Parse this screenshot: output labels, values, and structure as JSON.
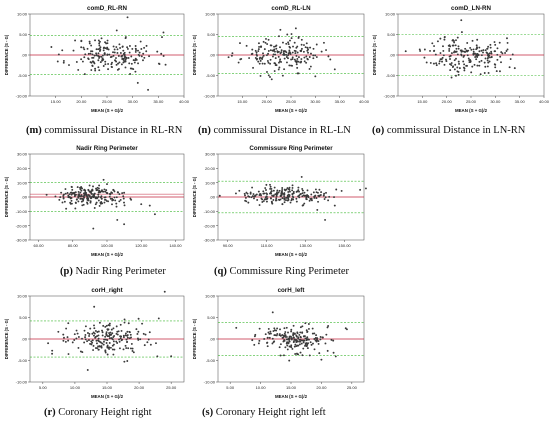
{
  "chart_data": [
    {
      "type": "scatter",
      "id": "m",
      "title": "comD_RL-RN",
      "xlabel": "MEAN (S + G)/2",
      "ylabel": "DIFFERENCE (S - G)",
      "xlim": [
        10,
        40
      ],
      "ylim": [
        -10,
        10
      ],
      "x_ticks": [
        {
          "v": 15,
          "t": "15.00"
        },
        {
          "v": 20,
          "t": "20.00"
        },
        {
          "v": 25,
          "t": "25.00"
        },
        {
          "v": 30,
          "t": "30.00"
        },
        {
          "v": 35,
          "t": "35.00"
        },
        {
          "v": 40,
          "t": "40.00"
        }
      ],
      "y_ticks": [
        {
          "v": 10,
          "t": "10.00"
        },
        {
          "v": 5,
          "t": "5.00"
        },
        {
          "v": 0,
          "t": ".00"
        },
        {
          "v": -5,
          "t": "-5.00"
        },
        {
          "v": -10,
          "t": "-10.00"
        }
      ],
      "mean_diff": 0.0,
      "loa_upper": 4.8,
      "loa_lower": -4.8,
      "cluster": {
        "x": 26,
        "sx": 4.2,
        "y": 0,
        "sy": 2.2,
        "n": 200,
        "seed": 11
      },
      "outliers": [
        [
          29,
          9.2
        ],
        [
          31,
          -6.8
        ],
        [
          36,
          5.5
        ],
        [
          33,
          -8.5
        ]
      ],
      "caption_letter": "(m)",
      "caption_text": " commissural Distance in RL-RN"
    },
    {
      "type": "scatter",
      "id": "n",
      "title": "comD_RL-LN",
      "xlabel": "MEAN (S + G)/2",
      "ylabel": "DIFFERENCE (S - G)",
      "xlim": [
        10,
        40
      ],
      "ylim": [
        -10,
        10
      ],
      "x_ticks": [
        {
          "v": 15,
          "t": "15.00"
        },
        {
          "v": 20,
          "t": "20.00"
        },
        {
          "v": 25,
          "t": "25.00"
        },
        {
          "v": 30,
          "t": "30.00"
        },
        {
          "v": 35,
          "t": "35.00"
        },
        {
          "v": 40,
          "t": "40.00"
        }
      ],
      "y_ticks": [
        {
          "v": 10,
          "t": "10.00"
        },
        {
          "v": 5,
          "t": "5.00"
        },
        {
          "v": 0,
          "t": ".00"
        },
        {
          "v": -5,
          "t": "-5.00"
        },
        {
          "v": -10,
          "t": "-10.00"
        }
      ],
      "mean_diff": 0.0,
      "loa_upper": 4.5,
      "loa_lower": -4.5,
      "cluster": {
        "x": 23,
        "sx": 4.0,
        "y": 0,
        "sy": 2.0,
        "n": 200,
        "seed": 23
      },
      "outliers": [
        [
          26,
          6.5
        ],
        [
          30,
          -5.2
        ],
        [
          34,
          -3.5
        ]
      ],
      "caption_letter": "(n)",
      "caption_text": " commissural Distance in RL-LN"
    },
    {
      "type": "scatter",
      "id": "o",
      "title": "comD_LN-RN",
      "xlabel": "MEAN (S + G)/2",
      "ylabel": "DIFFERENCE (S - G)",
      "xlim": [
        10,
        40
      ],
      "ylim": [
        -10,
        10
      ],
      "x_ticks": [
        {
          "v": 15,
          "t": "15.00"
        },
        {
          "v": 20,
          "t": "20.00"
        },
        {
          "v": 25,
          "t": "25.00"
        },
        {
          "v": 30,
          "t": "30.00"
        },
        {
          "v": 35,
          "t": "35.00"
        },
        {
          "v": 40,
          "t": "40.00"
        }
      ],
      "y_ticks": [
        {
          "v": 10,
          "t": "10.00"
        },
        {
          "v": 5,
          "t": "5.00"
        },
        {
          "v": 0,
          "t": ".00"
        },
        {
          "v": -5,
          "t": "-5.00"
        },
        {
          "v": -10,
          "t": "-10.00"
        }
      ],
      "mean_diff": 0.0,
      "loa_upper": 5.0,
      "loa_lower": -5.0,
      "cluster": {
        "x": 24,
        "sx": 4.0,
        "y": 0,
        "sy": 2.3,
        "n": 200,
        "seed": 37
      },
      "outliers": [
        [
          23,
          8.5
        ],
        [
          32,
          0.5
        ],
        [
          34,
          -3.2
        ]
      ],
      "caption_letter": "(o)",
      "caption_text": " commissural Distance in LN-RN"
    },
    {
      "type": "scatter",
      "id": "p",
      "title": "Nadir Ring Perimeter",
      "xlabel": "MEAN (S + G)/2",
      "ylabel": "DIFFERENCE (S - G)",
      "xlim": [
        55,
        145
      ],
      "ylim": [
        -30,
        30
      ],
      "x_ticks": [
        {
          "v": 60,
          "t": "60.00"
        },
        {
          "v": 80,
          "t": "80.00"
        },
        {
          "v": 100,
          "t": "100.00"
        },
        {
          "v": 120,
          "t": "120.00"
        },
        {
          "v": 140,
          "t": "140.00"
        }
      ],
      "y_ticks": [
        {
          "v": 30,
          "t": "30.00"
        },
        {
          "v": 20,
          "t": "20.00"
        },
        {
          "v": 10,
          "t": "10.00"
        },
        {
          "v": 0,
          "t": ".00"
        },
        {
          "v": -10,
          "t": "-10.00"
        },
        {
          "v": -20,
          "t": "-20.00"
        },
        {
          "v": -30,
          "t": "-30.00"
        }
      ],
      "mean_diff": 0.0,
      "loa_upper": 10.0,
      "loa_lower": -10.0,
      "mean_diff_2": 2.0,
      "cluster": {
        "x": 90,
        "sx": 10.0,
        "y": 0.5,
        "sy": 3.5,
        "n": 210,
        "seed": 51
      },
      "outliers": [
        [
          98,
          12
        ],
        [
          100,
          9
        ],
        [
          106,
          -16
        ],
        [
          92,
          -22
        ],
        [
          120,
          -5
        ],
        [
          125,
          -6
        ],
        [
          128,
          -12
        ],
        [
          110,
          -19
        ]
      ],
      "caption_letter": "(p)",
      "caption_text": " Nadir Ring Perimeter"
    },
    {
      "type": "scatter",
      "id": "q",
      "title": "Commissure Ring Perimeter",
      "xlabel": "MEAN (S + G)/2",
      "ylabel": "DIFFERENCE (S - G)",
      "xlim": [
        85,
        160
      ],
      "ylim": [
        -30,
        30
      ],
      "x_ticks": [
        {
          "v": 90,
          "t": "90.00"
        },
        {
          "v": 110,
          "t": "110.00"
        },
        {
          "v": 130,
          "t": "130.00"
        },
        {
          "v": 150,
          "t": "150.00"
        }
      ],
      "y_ticks": [
        {
          "v": 30,
          "t": "30.00"
        },
        {
          "v": 20,
          "t": "20.00"
        },
        {
          "v": 10,
          "t": "10.00"
        },
        {
          "v": 0,
          "t": ".00"
        },
        {
          "v": -10,
          "t": "-10.00"
        },
        {
          "v": -20,
          "t": "-20.00"
        },
        {
          "v": -30,
          "t": "-30.00"
        }
      ],
      "mean_diff": 0.0,
      "loa_upper": 11.0,
      "loa_lower": -11.0,
      "cluster": {
        "x": 118,
        "sx": 11.0,
        "y": 0.5,
        "sy": 3.0,
        "n": 210,
        "seed": 67
      },
      "outliers": [
        [
          158,
          5
        ],
        [
          161,
          6
        ],
        [
          136,
          -9
        ],
        [
          140,
          -16
        ],
        [
          128,
          14
        ],
        [
          145,
          -6
        ]
      ],
      "caption_letter": "(q)",
      "caption_text": " Commissure Ring Perimeter"
    },
    {
      "type": "scatter",
      "id": "r",
      "title": "corH_right",
      "xlabel": "MEAN (S + G)/2",
      "ylabel": "DIFFERENCE (S - G)",
      "xlim": [
        3,
        27
      ],
      "ylim": [
        -10,
        10
      ],
      "x_ticks": [
        {
          "v": 5,
          "t": "5.00"
        },
        {
          "v": 10,
          "t": "10.00"
        },
        {
          "v": 15,
          "t": "15.00"
        },
        {
          "v": 20,
          "t": "20.00"
        },
        {
          "v": 25,
          "t": "25.00"
        }
      ],
      "y_ticks": [
        {
          "v": 10,
          "t": "10.00"
        },
        {
          "v": 5,
          "t": "5.00"
        },
        {
          "v": 0,
          "t": ".00"
        },
        {
          "v": -5,
          "t": "-5.00"
        },
        {
          "v": -10,
          "t": "-10.00"
        }
      ],
      "mean_diff": 0.0,
      "loa_upper": 4.2,
      "loa_lower": -4.2,
      "cluster": {
        "x": 15,
        "sx": 3.3,
        "y": 0,
        "sy": 1.9,
        "n": 200,
        "seed": 83
      },
      "outliers": [
        [
          16,
          11.2
        ],
        [
          13,
          7.5
        ],
        [
          12,
          -7.2
        ],
        [
          24,
          11
        ],
        [
          25,
          -4
        ],
        [
          9,
          -3.5
        ]
      ],
      "caption_letter": "(r)",
      "caption_text": " Coronary Height right"
    },
    {
      "type": "scatter",
      "id": "s",
      "title": "corH_left",
      "xlabel": "MEAN (S + G)/2",
      "ylabel": "DIFFERENCE (S - G)",
      "xlim": [
        3,
        27
      ],
      "ylim": [
        -10,
        10
      ],
      "x_ticks": [
        {
          "v": 5,
          "t": "5.00"
        },
        {
          "v": 10,
          "t": "10.00"
        },
        {
          "v": 15,
          "t": "15.00"
        },
        {
          "v": 20,
          "t": "20.00"
        },
        {
          "v": 25,
          "t": "25.00"
        }
      ],
      "y_ticks": [
        {
          "v": 10,
          "t": "10.00"
        },
        {
          "v": 5,
          "t": "5.00"
        },
        {
          "v": 0,
          "t": ".00"
        },
        {
          "v": -5,
          "t": "-5.00"
        },
        {
          "v": -10,
          "t": "-10.00"
        }
      ],
      "mean_diff": 0.0,
      "loa_upper": 3.8,
      "loa_lower": -3.8,
      "cluster": {
        "x": 15,
        "sx": 3.0,
        "y": 0,
        "sy": 1.7,
        "n": 200,
        "seed": 97
      },
      "outliers": [
        [
          12,
          6.2
        ],
        [
          20,
          -4.8
        ],
        [
          6,
          2.6
        ],
        [
          22,
          -3.2
        ],
        [
          24,
          2.5
        ]
      ],
      "caption_letter": "(s)",
      "caption_text": " Coronary Height right left"
    }
  ]
}
